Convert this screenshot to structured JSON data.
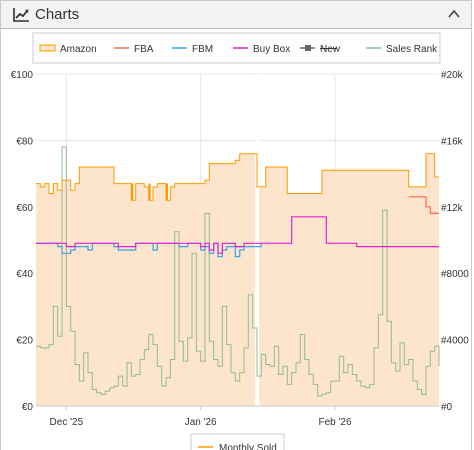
{
  "panel": {
    "title": "Charts",
    "title_icon": "line-chart-icon",
    "collapse_icon": "chevron-up-icon"
  },
  "colors": {
    "amazon": "#ff9900",
    "amazon_fill": "#fde4cc",
    "fba": "#f96c4b",
    "fbm": "#3aa3e3",
    "buybox": "#e021d7",
    "new": "#666666",
    "salesrank": "#8fbc8f",
    "monthly_sold": "#ff9900"
  },
  "chart_data": {
    "type": "line",
    "legend": [
      {
        "name": "Amazon",
        "key": "amazon"
      },
      {
        "name": "FBA",
        "key": "fba"
      },
      {
        "name": "FBM",
        "key": "fbm"
      },
      {
        "name": "Buy Box",
        "key": "buybox"
      },
      {
        "name": "New",
        "key": "new",
        "disabled": true
      },
      {
        "name": "Sales Rank",
        "key": "salesrank"
      }
    ],
    "legend2": [
      {
        "name": "Monthly Sold",
        "key": "monthly_sold"
      }
    ],
    "x_ticks": [
      "Dec '25",
      "Jan '26",
      "Feb '26"
    ],
    "x_tick_day": [
      7,
      38,
      69
    ],
    "x_range": [
      0,
      93
    ],
    "y_left": {
      "ticks": [
        "€0",
        "€20",
        "€40",
        "€60",
        "€80",
        "€100"
      ],
      "range": [
        0,
        100
      ]
    },
    "y_right": {
      "ticks": [
        "#0",
        "#4000",
        "#8000",
        "#12k",
        "#16k",
        "#20k"
      ],
      "range": [
        0,
        20000
      ]
    },
    "grid": true,
    "amazon_gap": [
      50.5,
      51.5
    ],
    "series": [
      {
        "key": "amazon",
        "axis": "left",
        "area": true,
        "points": [
          [
            0,
            67
          ],
          [
            1,
            66
          ],
          [
            2,
            67
          ],
          [
            3,
            64
          ],
          [
            4,
            67
          ],
          [
            5,
            65
          ],
          [
            6,
            68
          ],
          [
            7,
            68
          ],
          [
            8,
            65
          ],
          [
            9,
            67
          ],
          [
            10,
            72
          ],
          [
            11,
            72
          ],
          [
            12,
            72
          ],
          [
            13,
            72
          ],
          [
            14,
            72
          ],
          [
            15,
            72
          ],
          [
            16,
            72
          ],
          [
            17,
            72
          ],
          [
            18,
            67
          ],
          [
            19,
            67
          ],
          [
            20,
            67
          ],
          [
            21,
            67
          ],
          [
            22,
            62
          ],
          [
            23,
            67
          ],
          [
            24,
            67
          ],
          [
            25,
            66
          ],
          [
            26,
            62
          ],
          [
            27,
            66
          ],
          [
            28,
            67
          ],
          [
            29,
            67
          ],
          [
            30,
            62
          ],
          [
            31,
            66
          ],
          [
            32,
            67
          ],
          [
            33,
            67
          ],
          [
            34,
            67
          ],
          [
            35,
            67
          ],
          [
            36,
            67
          ],
          [
            37,
            67
          ],
          [
            38,
            67
          ],
          [
            39,
            68
          ],
          [
            40,
            73
          ],
          [
            41,
            73
          ],
          [
            42,
            73
          ],
          [
            43,
            73
          ],
          [
            44,
            73
          ],
          [
            45,
            73
          ],
          [
            46,
            74
          ],
          [
            47,
            76
          ],
          [
            48,
            76
          ],
          [
            49,
            76
          ],
          [
            50,
            76
          ],
          [
            51,
            66
          ],
          [
            52,
            66
          ],
          [
            53,
            72
          ],
          [
            54,
            72
          ],
          [
            55,
            72
          ],
          [
            56,
            72
          ],
          [
            57,
            72
          ],
          [
            58,
            64
          ],
          [
            59,
            64
          ],
          [
            60,
            64
          ],
          [
            61,
            64
          ],
          [
            62,
            64
          ],
          [
            63,
            64
          ],
          [
            64,
            64
          ],
          [
            65,
            64
          ],
          [
            66,
            71
          ],
          [
            67,
            71
          ],
          [
            68,
            71
          ],
          [
            69,
            71
          ],
          [
            70,
            71
          ],
          [
            71,
            71
          ],
          [
            72,
            71
          ],
          [
            73,
            71
          ],
          [
            74,
            71
          ],
          [
            75,
            71
          ],
          [
            76,
            71
          ],
          [
            77,
            71
          ],
          [
            78,
            71
          ],
          [
            79,
            71
          ],
          [
            80,
            71
          ],
          [
            81,
            71
          ],
          [
            82,
            71
          ],
          [
            83,
            71
          ],
          [
            84,
            71
          ],
          [
            85,
            71
          ],
          [
            86,
            66
          ],
          [
            87,
            66
          ],
          [
            88,
            66
          ],
          [
            89,
            66
          ],
          [
            90,
            76
          ],
          [
            91,
            76
          ],
          [
            92,
            69
          ],
          [
            93,
            69
          ]
        ]
      },
      {
        "key": "fba",
        "axis": "left",
        "points": [
          [
            86,
            63
          ],
          [
            89,
            63
          ],
          [
            90,
            60
          ],
          [
            91,
            58
          ],
          [
            93,
            58
          ]
        ]
      },
      {
        "key": "fbm",
        "axis": "left",
        "points": [
          [
            0,
            49
          ],
          [
            5,
            48
          ],
          [
            6,
            46
          ],
          [
            8,
            47
          ],
          [
            9,
            48
          ],
          [
            12,
            47
          ],
          [
            13,
            49
          ],
          [
            18,
            48
          ],
          [
            19,
            47
          ],
          [
            23,
            49
          ],
          [
            27,
            47
          ],
          [
            28,
            49
          ],
          [
            33,
            48
          ],
          [
            35,
            49
          ],
          [
            38,
            47
          ],
          [
            39,
            48
          ],
          [
            40,
            46
          ],
          [
            41,
            49
          ],
          [
            42,
            45
          ],
          [
            43,
            47
          ],
          [
            44,
            48
          ],
          [
            46,
            45
          ],
          [
            47,
            47
          ],
          [
            48,
            48
          ],
          [
            52,
            49
          ]
        ]
      },
      {
        "key": "buybox",
        "axis": "left",
        "points": [
          [
            0,
            49
          ],
          [
            6,
            49
          ],
          [
            7,
            48
          ],
          [
            9,
            49
          ],
          [
            13,
            49
          ],
          [
            18,
            49
          ],
          [
            19,
            48
          ],
          [
            23,
            49
          ],
          [
            30,
            49
          ],
          [
            35,
            49
          ],
          [
            38,
            48
          ],
          [
            39,
            49
          ],
          [
            40,
            47
          ],
          [
            41,
            49
          ],
          [
            42,
            46
          ],
          [
            43,
            49
          ],
          [
            46,
            48
          ],
          [
            48,
            49
          ],
          [
            52,
            49
          ],
          [
            58,
            49
          ],
          [
            59,
            57
          ],
          [
            66,
            57
          ],
          [
            67,
            49
          ],
          [
            73,
            49
          ],
          [
            74,
            48
          ],
          [
            81,
            48
          ],
          [
            82,
            48
          ],
          [
            93,
            48
          ]
        ]
      },
      {
        "key": "salesrank",
        "axis": "right",
        "points": [
          [
            0,
            3600
          ],
          [
            1,
            3500
          ],
          [
            2,
            3500
          ],
          [
            3,
            3700
          ],
          [
            4,
            6000
          ],
          [
            5,
            4200
          ],
          [
            6,
            15600
          ],
          [
            7,
            6000
          ],
          [
            8,
            4500
          ],
          [
            9,
            2500
          ],
          [
            10,
            1500
          ],
          [
            11,
            3200
          ],
          [
            12,
            2000
          ],
          [
            13,
            1000
          ],
          [
            14,
            800
          ],
          [
            15,
            700
          ],
          [
            16,
            900
          ],
          [
            17,
            1100
          ],
          [
            18,
            1200
          ],
          [
            19,
            1800
          ],
          [
            20,
            1200
          ],
          [
            21,
            2600
          ],
          [
            22,
            1800
          ],
          [
            23,
            1900
          ],
          [
            24,
            2800
          ],
          [
            25,
            3400
          ],
          [
            26,
            4300
          ],
          [
            27,
            3700
          ],
          [
            28,
            2400
          ],
          [
            29,
            1200
          ],
          [
            30,
            1700
          ],
          [
            31,
            2800
          ],
          [
            32,
            10500
          ],
          [
            33,
            3900
          ],
          [
            34,
            2700
          ],
          [
            35,
            4100
          ],
          [
            36,
            9200
          ],
          [
            37,
            3300
          ],
          [
            38,
            2700
          ],
          [
            39,
            11600
          ],
          [
            40,
            3900
          ],
          [
            41,
            2800
          ],
          [
            42,
            2400
          ],
          [
            43,
            6000
          ],
          [
            44,
            3700
          ],
          [
            45,
            2000
          ],
          [
            46,
            1500
          ],
          [
            47,
            2000
          ],
          [
            48,
            3500
          ],
          [
            49,
            6700
          ],
          [
            50,
            4700
          ],
          [
            51,
            1800
          ],
          [
            52,
            3100
          ],
          [
            53,
            2500
          ],
          [
            54,
            2400
          ],
          [
            55,
            3600
          ],
          [
            56,
            1900
          ],
          [
            57,
            2400
          ],
          [
            58,
            1300
          ],
          [
            59,
            2000
          ],
          [
            60,
            2600
          ],
          [
            61,
            4300
          ],
          [
            62,
            2800
          ],
          [
            63,
            1900
          ],
          [
            64,
            1300
          ],
          [
            65,
            600
          ],
          [
            66,
            700
          ],
          [
            67,
            800
          ],
          [
            68,
            1500
          ],
          [
            69,
            1500
          ],
          [
            70,
            3000
          ],
          [
            71,
            2000
          ],
          [
            72,
            2500
          ],
          [
            73,
            1900
          ],
          [
            74,
            1500
          ],
          [
            75,
            1200
          ],
          [
            76,
            1100
          ],
          [
            77,
            1300
          ],
          [
            78,
            3500
          ],
          [
            79,
            5500
          ],
          [
            80,
            11800
          ],
          [
            81,
            5100
          ],
          [
            82,
            2600
          ],
          [
            83,
            2100
          ],
          [
            84,
            3800
          ],
          [
            85,
            2500
          ],
          [
            86,
            2800
          ],
          [
            87,
            1500
          ],
          [
            88,
            1000
          ],
          [
            89,
            700
          ],
          [
            90,
            2400
          ],
          [
            91,
            3300
          ],
          [
            92,
            3600
          ],
          [
            93,
            2400
          ]
        ]
      }
    ]
  }
}
